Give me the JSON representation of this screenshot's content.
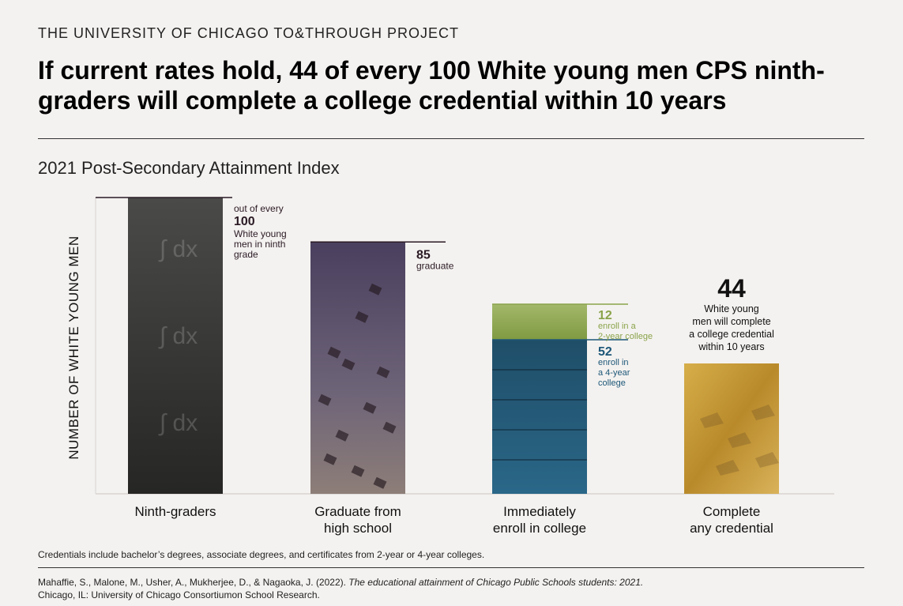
{
  "header": {
    "org": "THE UNIVERSITY OF CHICAGO TO&THROUGH PROJECT",
    "headline": "If current rates hold, 44 of every 100 White young men CPS ninth-graders will complete a college credential within 10 years"
  },
  "colors": {
    "dark": "#2a1a24",
    "green": "#8aa34a",
    "blue": "#1d5778",
    "gold": "#c89a2e"
  },
  "chart_data": {
    "type": "bar",
    "title": "2021 Post-Secondary Attainment Index",
    "ylabel": "NUMBER OF WHITE YOUNG MEN",
    "ylim": [
      0,
      100
    ],
    "categories": [
      {
        "line1": "Ninth-graders",
        "line2": ""
      },
      {
        "line1": "Graduate from",
        "line2": "high school"
      },
      {
        "line1": "Immediately",
        "line2": "enroll in college"
      },
      {
        "line1": "Complete",
        "line2": "any credential"
      }
    ],
    "bars": [
      {
        "value": 100,
        "label_value": "100",
        "label_lines": [
          "out of every",
          "White young",
          "men in ninth",
          "grade"
        ]
      },
      {
        "value": 85,
        "label_value": "85",
        "label_lines": [
          "graduate"
        ]
      },
      {
        "stacked": [
          {
            "value": 52,
            "label_value": "52",
            "label_lines": [
              "enroll in",
              "a 4-year",
              "college"
            ]
          },
          {
            "value": 12,
            "label_value": "12",
            "label_lines": [
              "enroll in a",
              "2-year college"
            ]
          }
        ]
      },
      {
        "value": 44,
        "label_value": "44",
        "label_lines": [
          "White young",
          "men will complete",
          "a college credential",
          "within 10 years"
        ]
      }
    ]
  },
  "footer": {
    "note": "Credentials include bachelor’s degrees, associate degrees, and certificates from 2-year or 4-year colleges.",
    "citation_authors": "Mahaffie, S., Malone, M., Usher, A., Mukherjee, D., & Nagaoka, J. (2022). ",
    "citation_title": "The educational attainment of Chicago Public Schools students: 2021.",
    "citation_publisher": "Chicago, IL: University of Chicago Consortiumon School Research."
  }
}
